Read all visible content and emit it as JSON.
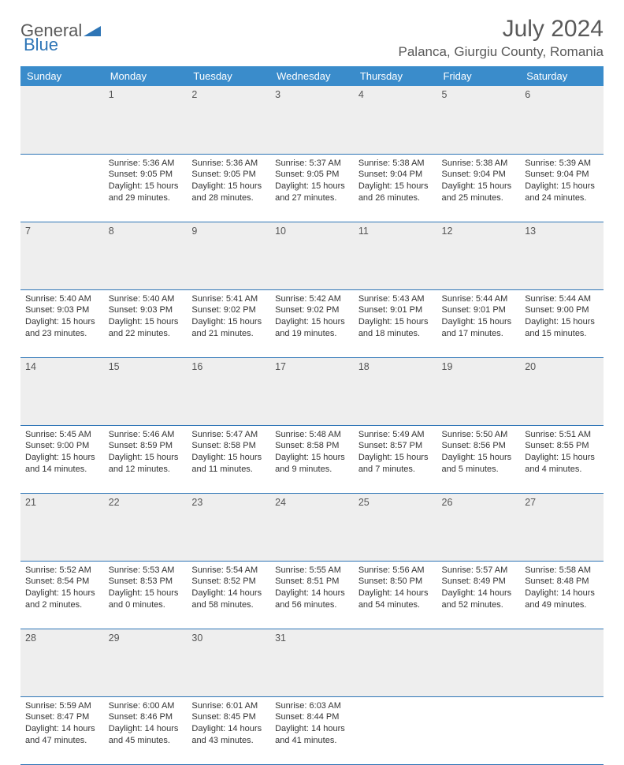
{
  "logo": {
    "part1": "General",
    "part2": "Blue"
  },
  "title": "July 2024",
  "location": "Palanca, Giurgiu County, Romania",
  "colors": {
    "header_bg": "#3a8ccb",
    "divider": "#2e75b6",
    "daynum_bg": "#eeeeee",
    "text": "#333333",
    "title_text": "#595959"
  },
  "weekdays": [
    "Sunday",
    "Monday",
    "Tuesday",
    "Wednesday",
    "Thursday",
    "Friday",
    "Saturday"
  ],
  "weeks": [
    {
      "nums": [
        "",
        "1",
        "2",
        "3",
        "4",
        "5",
        "6"
      ],
      "cells": [
        null,
        {
          "sunrise": "5:36 AM",
          "sunset": "9:05 PM",
          "daylight": "15 hours and 29 minutes."
        },
        {
          "sunrise": "5:36 AM",
          "sunset": "9:05 PM",
          "daylight": "15 hours and 28 minutes."
        },
        {
          "sunrise": "5:37 AM",
          "sunset": "9:05 PM",
          "daylight": "15 hours and 27 minutes."
        },
        {
          "sunrise": "5:38 AM",
          "sunset": "9:04 PM",
          "daylight": "15 hours and 26 minutes."
        },
        {
          "sunrise": "5:38 AM",
          "sunset": "9:04 PM",
          "daylight": "15 hours and 25 minutes."
        },
        {
          "sunrise": "5:39 AM",
          "sunset": "9:04 PM",
          "daylight": "15 hours and 24 minutes."
        }
      ]
    },
    {
      "nums": [
        "7",
        "8",
        "9",
        "10",
        "11",
        "12",
        "13"
      ],
      "cells": [
        {
          "sunrise": "5:40 AM",
          "sunset": "9:03 PM",
          "daylight": "15 hours and 23 minutes."
        },
        {
          "sunrise": "5:40 AM",
          "sunset": "9:03 PM",
          "daylight": "15 hours and 22 minutes."
        },
        {
          "sunrise": "5:41 AM",
          "sunset": "9:02 PM",
          "daylight": "15 hours and 21 minutes."
        },
        {
          "sunrise": "5:42 AM",
          "sunset": "9:02 PM",
          "daylight": "15 hours and 19 minutes."
        },
        {
          "sunrise": "5:43 AM",
          "sunset": "9:01 PM",
          "daylight": "15 hours and 18 minutes."
        },
        {
          "sunrise": "5:44 AM",
          "sunset": "9:01 PM",
          "daylight": "15 hours and 17 minutes."
        },
        {
          "sunrise": "5:44 AM",
          "sunset": "9:00 PM",
          "daylight": "15 hours and 15 minutes."
        }
      ]
    },
    {
      "nums": [
        "14",
        "15",
        "16",
        "17",
        "18",
        "19",
        "20"
      ],
      "cells": [
        {
          "sunrise": "5:45 AM",
          "sunset": "9:00 PM",
          "daylight": "15 hours and 14 minutes."
        },
        {
          "sunrise": "5:46 AM",
          "sunset": "8:59 PM",
          "daylight": "15 hours and 12 minutes."
        },
        {
          "sunrise": "5:47 AM",
          "sunset": "8:58 PM",
          "daylight": "15 hours and 11 minutes."
        },
        {
          "sunrise": "5:48 AM",
          "sunset": "8:58 PM",
          "daylight": "15 hours and 9 minutes."
        },
        {
          "sunrise": "5:49 AM",
          "sunset": "8:57 PM",
          "daylight": "15 hours and 7 minutes."
        },
        {
          "sunrise": "5:50 AM",
          "sunset": "8:56 PM",
          "daylight": "15 hours and 5 minutes."
        },
        {
          "sunrise": "5:51 AM",
          "sunset": "8:55 PM",
          "daylight": "15 hours and 4 minutes."
        }
      ]
    },
    {
      "nums": [
        "21",
        "22",
        "23",
        "24",
        "25",
        "26",
        "27"
      ],
      "cells": [
        {
          "sunrise": "5:52 AM",
          "sunset": "8:54 PM",
          "daylight": "15 hours and 2 minutes."
        },
        {
          "sunrise": "5:53 AM",
          "sunset": "8:53 PM",
          "daylight": "15 hours and 0 minutes."
        },
        {
          "sunrise": "5:54 AM",
          "sunset": "8:52 PM",
          "daylight": "14 hours and 58 minutes."
        },
        {
          "sunrise": "5:55 AM",
          "sunset": "8:51 PM",
          "daylight": "14 hours and 56 minutes."
        },
        {
          "sunrise": "5:56 AM",
          "sunset": "8:50 PM",
          "daylight": "14 hours and 54 minutes."
        },
        {
          "sunrise": "5:57 AM",
          "sunset": "8:49 PM",
          "daylight": "14 hours and 52 minutes."
        },
        {
          "sunrise": "5:58 AM",
          "sunset": "8:48 PM",
          "daylight": "14 hours and 49 minutes."
        }
      ]
    },
    {
      "nums": [
        "28",
        "29",
        "30",
        "31",
        "",
        "",
        ""
      ],
      "cells": [
        {
          "sunrise": "5:59 AM",
          "sunset": "8:47 PM",
          "daylight": "14 hours and 47 minutes."
        },
        {
          "sunrise": "6:00 AM",
          "sunset": "8:46 PM",
          "daylight": "14 hours and 45 minutes."
        },
        {
          "sunrise": "6:01 AM",
          "sunset": "8:45 PM",
          "daylight": "14 hours and 43 minutes."
        },
        {
          "sunrise": "6:03 AM",
          "sunset": "8:44 PM",
          "daylight": "14 hours and 41 minutes."
        },
        null,
        null,
        null
      ]
    }
  ],
  "labels": {
    "sunrise": "Sunrise:",
    "sunset": "Sunset:",
    "daylight": "Daylight:"
  }
}
